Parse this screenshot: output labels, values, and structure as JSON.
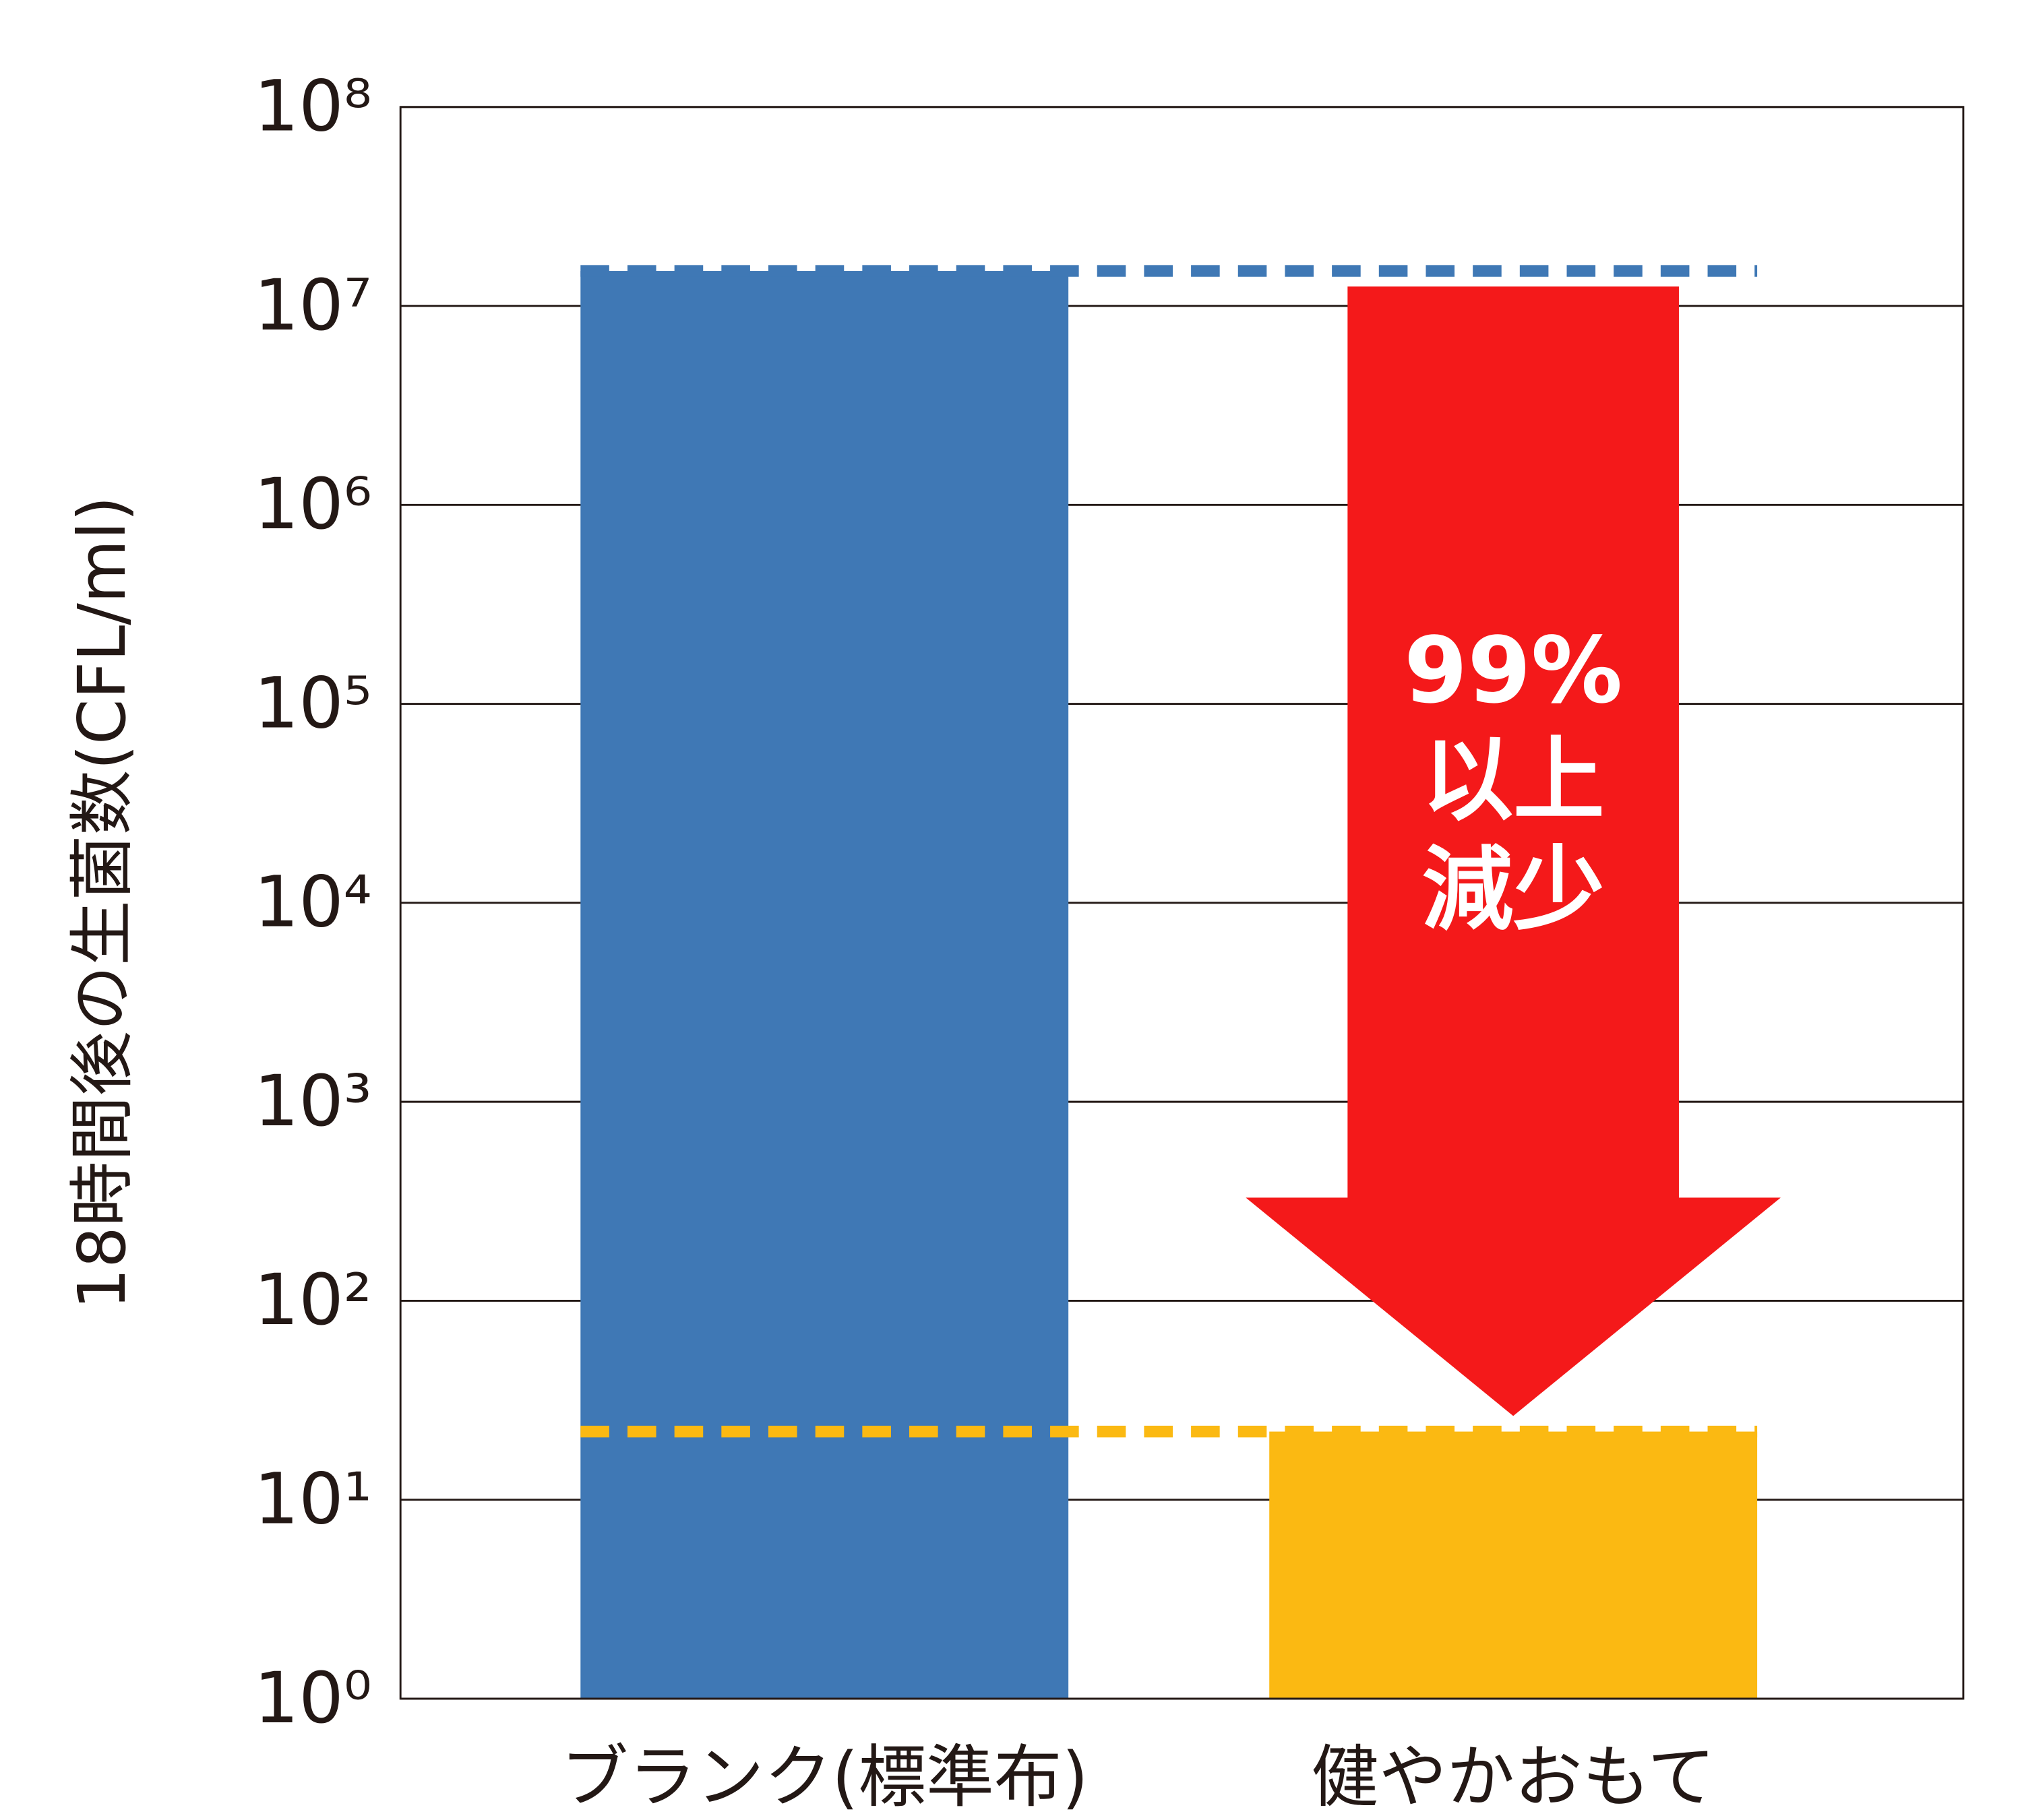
{
  "chart_data": {
    "type": "bar",
    "y_label": "18時間後の生菌数(CFL/ml)",
    "categories": [
      "ブランク(標準布)",
      "健やかおもて"
    ],
    "values": [
      15000000,
      22
    ],
    "colors": [
      "#3f78b5",
      "#fbb912"
    ],
    "log_scale": true,
    "grid": true,
    "ylim": [
      1,
      100000000
    ],
    "yticks": [
      {
        "value": 1,
        "label": "10⁰"
      },
      {
        "value": 10,
        "label": "10¹"
      },
      {
        "value": 100,
        "label": "10²"
      },
      {
        "value": 1000,
        "label": "10³"
      },
      {
        "value": 10000,
        "label": "10⁴"
      },
      {
        "value": 100000,
        "label": "10⁵"
      },
      {
        "value": 1000000,
        "label": "10⁶"
      },
      {
        "value": 10000000,
        "label": "10⁷"
      },
      {
        "value": 100000000,
        "label": "10⁸"
      }
    ],
    "annotation": [
      "99%",
      "以上",
      "減少"
    ],
    "annotation_color": "#f4191a"
  }
}
